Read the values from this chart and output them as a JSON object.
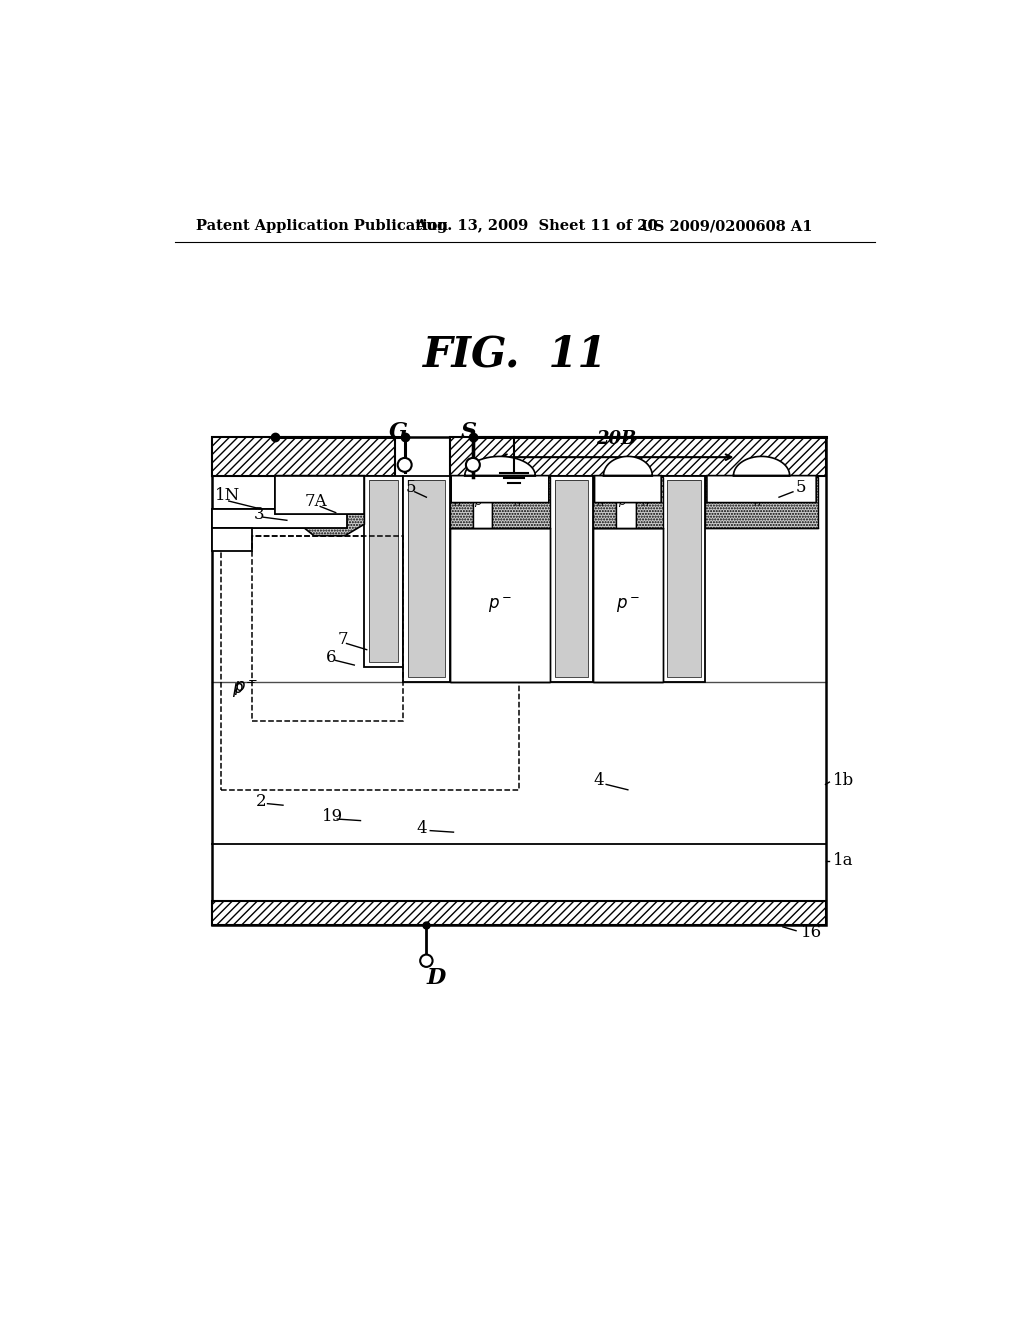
{
  "title": "FIG. 11",
  "header_left": "Patent Application Publication",
  "header_mid": "Aug. 13, 2009  Sheet 11 of 20",
  "header_right": "US 2009/0200608 A1",
  "bg_color": "#ffffff",
  "line_color": "#000000",
  "hatch_fill": "#ffffff",
  "dot_fill": "#cccccc"
}
